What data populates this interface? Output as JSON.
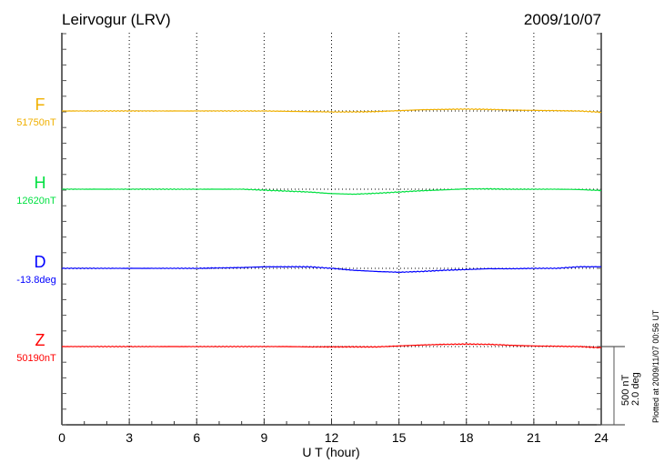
{
  "chart_data": {
    "type": "line",
    "title": "Leirvogur (LRV)",
    "date": "2009/10/07",
    "xlabel": "U T (hour)",
    "xlim": [
      0,
      24
    ],
    "xticks": [
      0,
      3,
      6,
      9,
      12,
      15,
      18,
      21,
      24
    ],
    "grid": "vertical dotted every 3 hours, dotted baseline per series",
    "scale_bar": {
      "nT_label": "500 nT",
      "deg_label": "2.0 deg",
      "nT": 500,
      "deg": 2.0
    },
    "footer": "Plotted at 2009/11/07 00:56 UT",
    "x": [
      0,
      1,
      2,
      3,
      4,
      5,
      6,
      7,
      8,
      9,
      10,
      11,
      12,
      13,
      14,
      15,
      16,
      17,
      18,
      19,
      20,
      21,
      22,
      23,
      24
    ],
    "series": [
      {
        "name": "F",
        "baseline_label": "51750nT",
        "unit": "nT",
        "color": "#f0b000",
        "offsets": [
          0,
          0,
          0,
          0,
          0,
          0,
          0,
          0,
          0,
          0,
          -2,
          -4,
          -6,
          -6,
          -4,
          2,
          8,
          10,
          12,
          10,
          6,
          4,
          2,
          0,
          -8
        ]
      },
      {
        "name": "H",
        "baseline_label": "12620nT",
        "unit": "nT",
        "color": "#00e040",
        "offsets": [
          0,
          0,
          0,
          0,
          0,
          0,
          0,
          0,
          0,
          -6,
          -12,
          -18,
          -28,
          -32,
          -26,
          -18,
          -10,
          -4,
          2,
          2,
          0,
          0,
          0,
          -2,
          -8
        ]
      },
      {
        "name": "D",
        "baseline_label": "-13.8deg",
        "unit": "deg",
        "color": "#0000ff",
        "offsets": [
          0,
          0,
          0,
          0,
          0,
          0,
          0,
          0.01,
          0.02,
          0.04,
          0.04,
          0.04,
          0.0,
          -0.05,
          -0.08,
          -0.1,
          -0.08,
          -0.05,
          -0.03,
          -0.01,
          -0.01,
          0,
          0,
          0.04,
          0.04
        ]
      },
      {
        "name": "Z",
        "baseline_label": "50190nT",
        "unit": "nT",
        "color": "#ff0000",
        "offsets": [
          0,
          0,
          0,
          0,
          0,
          0,
          0,
          0,
          0,
          0,
          0,
          -2,
          -2,
          -2,
          -2,
          4,
          10,
          14,
          16,
          14,
          8,
          4,
          2,
          0,
          -8
        ]
      }
    ]
  }
}
